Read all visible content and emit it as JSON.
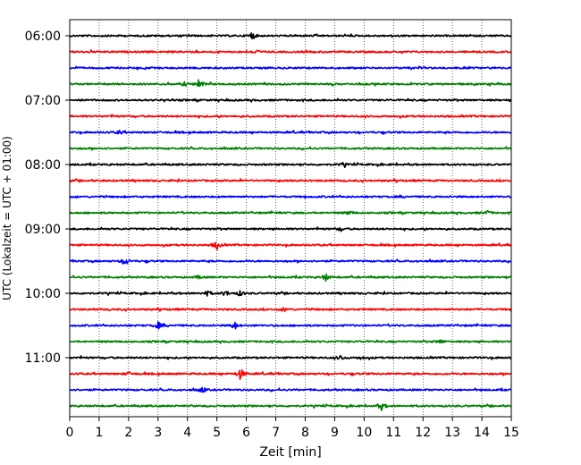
{
  "chart_data": {
    "type": "line",
    "title": "",
    "xlabel": "Zeit  [min]",
    "ylabel": "UTC (Lokalzeit = UTC + 01:00)",
    "xlim": [
      0,
      15
    ],
    "x_ticks": [
      "0",
      "1",
      "2",
      "3",
      "4",
      "5",
      "6",
      "7",
      "8",
      "9",
      "10",
      "11",
      "12",
      "13",
      "14",
      "15"
    ],
    "y_tick_labels": [
      "06:00",
      "07:00",
      "08:00",
      "09:00",
      "10:00",
      "11:00"
    ],
    "grid": "vertical dotted lines at each minute",
    "colors": [
      "#000000",
      "#ff0000",
      "#0000ff",
      "#008000"
    ],
    "series": [
      {
        "start": "06:00",
        "color": "#000000",
        "events": [
          [
            6.2,
            4.5
          ]
        ]
      },
      {
        "start": "06:15",
        "color": "#ff0000",
        "events": [
          [
            6.3,
            2.5
          ]
        ]
      },
      {
        "start": "06:30",
        "color": "#0000ff",
        "events": []
      },
      {
        "start": "06:45",
        "color": "#008000",
        "events": [
          [
            4.4,
            6
          ],
          [
            3.9,
            2
          ]
        ]
      },
      {
        "start": "07:00",
        "color": "#000000",
        "events": []
      },
      {
        "start": "07:15",
        "color": "#ff0000",
        "events": []
      },
      {
        "start": "07:30",
        "color": "#0000ff",
        "events": [
          [
            1.7,
            2
          ]
        ]
      },
      {
        "start": "07:45",
        "color": "#008000",
        "events": []
      },
      {
        "start": "08:00",
        "color": "#000000",
        "events": [
          [
            9.3,
            2
          ]
        ]
      },
      {
        "start": "08:15",
        "color": "#ff0000",
        "events": []
      },
      {
        "start": "08:30",
        "color": "#0000ff",
        "events": []
      },
      {
        "start": "08:45",
        "color": "#008000",
        "events": [
          [
            14.2,
            2
          ],
          [
            9.5,
            2
          ]
        ]
      },
      {
        "start": "09:00",
        "color": "#000000",
        "events": [
          [
            9.2,
            2
          ]
        ]
      },
      {
        "start": "09:15",
        "color": "#ff0000",
        "events": [
          [
            5.0,
            5
          ]
        ]
      },
      {
        "start": "09:30",
        "color": "#0000ff",
        "events": [
          [
            1.9,
            4.5
          ]
        ]
      },
      {
        "start": "09:45",
        "color": "#008000",
        "events": [
          [
            8.7,
            4
          ],
          [
            4.4,
            2
          ]
        ]
      },
      {
        "start": "10:00",
        "color": "#000000",
        "events": [
          [
            5.8,
            3
          ],
          [
            5.3,
            3
          ],
          [
            4.7,
            3
          ]
        ]
      },
      {
        "start": "10:15",
        "color": "#ff0000",
        "events": [
          [
            7.3,
            2
          ]
        ]
      },
      {
        "start": "10:30",
        "color": "#0000ff",
        "events": [
          [
            3.0,
            4
          ],
          [
            5.6,
            4.5
          ]
        ]
      },
      {
        "start": "10:45",
        "color": "#008000",
        "events": [
          [
            12.6,
            2
          ]
        ]
      },
      {
        "start": "11:00",
        "color": "#000000",
        "events": [
          [
            9.2,
            2.5
          ],
          [
            9.9,
            1.5
          ]
        ]
      },
      {
        "start": "11:15",
        "color": "#ff0000",
        "events": [
          [
            5.8,
            6.5
          ],
          [
            2.0,
            2
          ]
        ]
      },
      {
        "start": "11:30",
        "color": "#0000ff",
        "events": [
          [
            4.5,
            3
          ]
        ]
      },
      {
        "start": "11:45",
        "color": "#008000",
        "events": [
          [
            10.6,
            4.5
          ]
        ]
      }
    ]
  }
}
